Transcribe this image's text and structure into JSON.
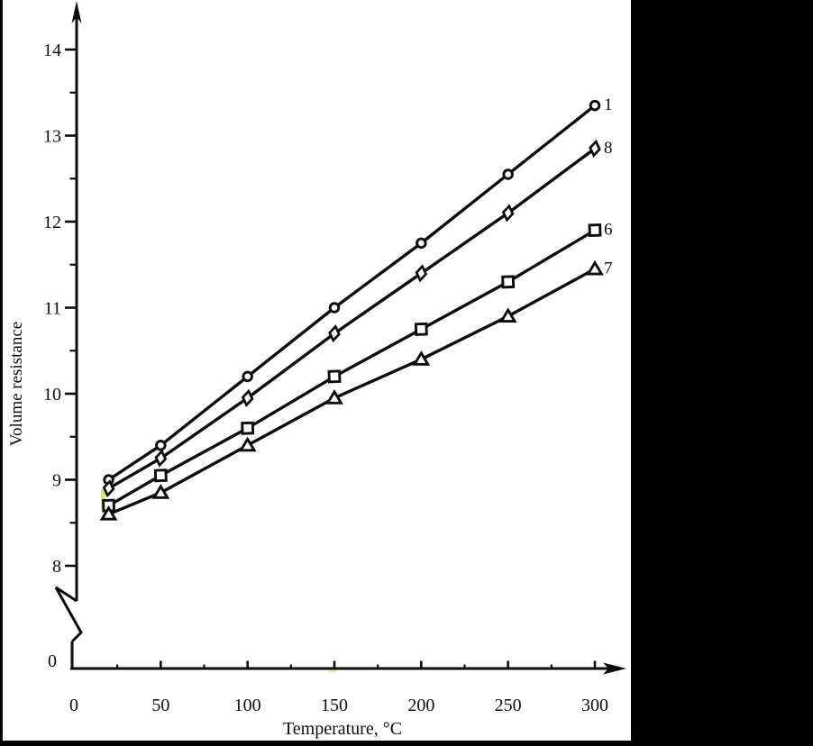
{
  "window": {
    "background": "#ffffff",
    "right_band_color": "#000000",
    "left_strip_color": "#000000",
    "bottom_strip_color": "#000000"
  },
  "chart_data": {
    "type": "line",
    "title": "",
    "xlabel": "Temperature, °C",
    "ylabel": "Volume resistance",
    "x": [
      20,
      50,
      100,
      150,
      200,
      250,
      300
    ],
    "series": [
      {
        "name": "1",
        "marker": "circle",
        "values": [
          9.0,
          9.4,
          10.2,
          11.0,
          11.75,
          12.55,
          13.35
        ]
      },
      {
        "name": "8",
        "marker": "diamond",
        "values": [
          8.9,
          9.25,
          9.95,
          10.7,
          11.4,
          12.1,
          12.85
        ]
      },
      {
        "name": "6",
        "marker": "square",
        "values": [
          8.7,
          9.05,
          9.6,
          10.2,
          10.75,
          11.3,
          11.9
        ]
      },
      {
        "name": "7",
        "marker": "triangle",
        "values": [
          8.6,
          8.85,
          9.4,
          9.95,
          10.4,
          10.9,
          11.45
        ]
      }
    ],
    "x_ticks_major": [
      0,
      50,
      100,
      150,
      200,
      250,
      300
    ],
    "x_tick_labels": [
      "0",
      "50",
      "100",
      "150",
      "200",
      "250",
      "300"
    ],
    "x_ticks_minor": [
      25,
      75,
      125,
      175,
      225,
      275
    ],
    "y_ticks_major": [
      8,
      9,
      10,
      11,
      12,
      13,
      14
    ],
    "y_tick_labels": [
      "8",
      "9",
      "10",
      "11",
      "12",
      "13",
      "14"
    ],
    "y_ticks_minor": [
      8.5,
      9.5,
      10.5,
      11.5,
      12.5,
      13.5
    ],
    "y_origin_label": "0",
    "y_axis_break": true,
    "y_axis_break_between": [
      0,
      8
    ],
    "xlim": [
      0,
      315
    ],
    "ylim": [
      8,
      14.5
    ],
    "grid": false,
    "legend_position": "right-of-last-point",
    "ink_color": "#0d0d0d",
    "marker_fill": "#ffffff",
    "artifact_color": "#d8dd60"
  }
}
